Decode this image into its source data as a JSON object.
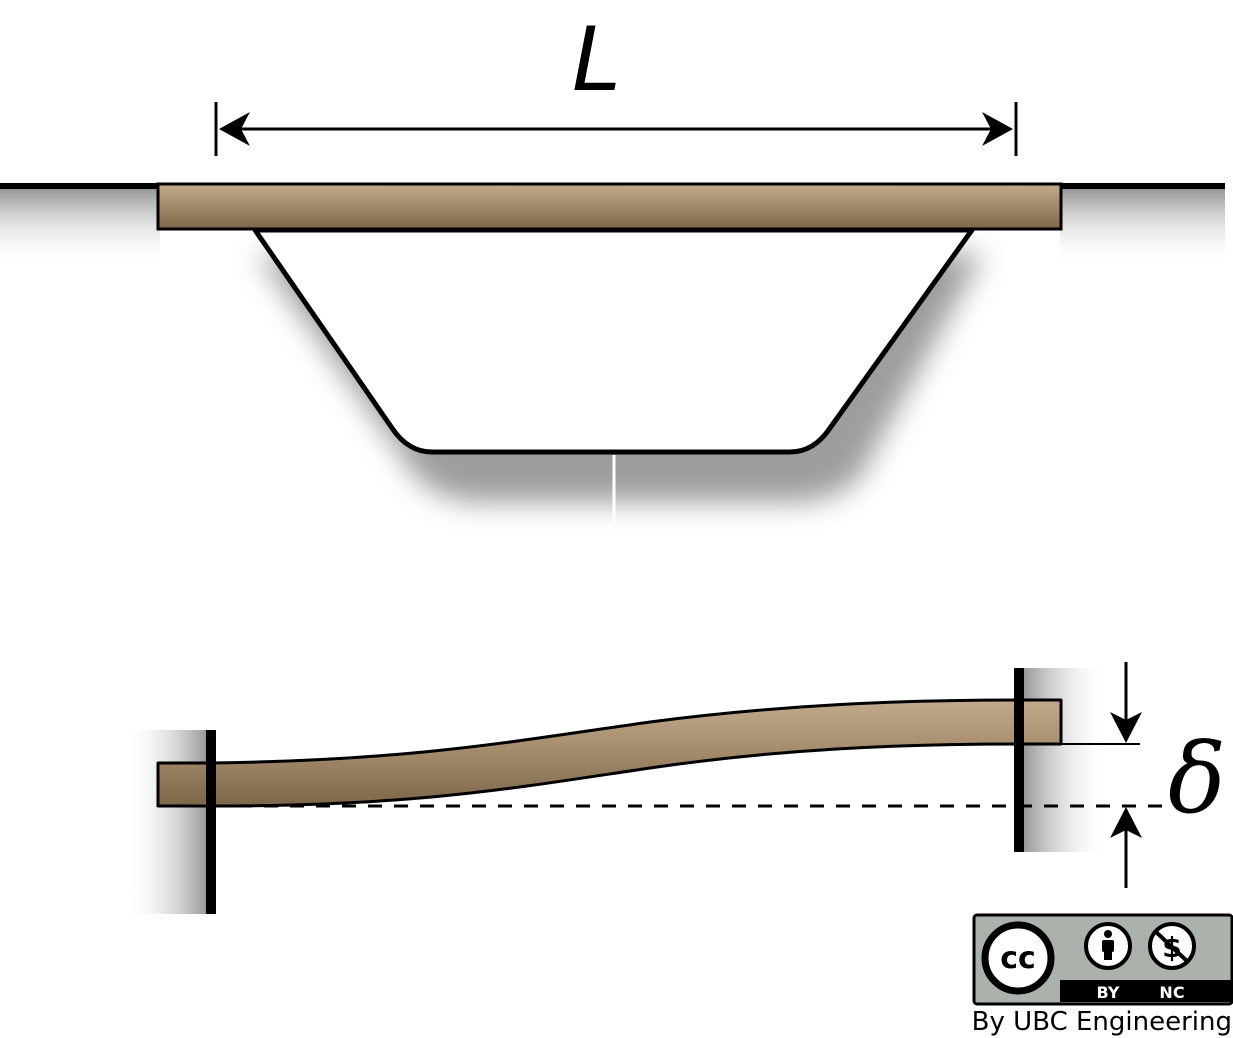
{
  "labels": {
    "span": "L",
    "deflection": "δ"
  },
  "license": {
    "cc": "cc",
    "by": "BY",
    "nc": "NC",
    "credit": "By UBC Engineering"
  },
  "colors": {
    "beam": "#a68d6e",
    "beam_shadow": "#7a6448",
    "ground_shadow": "#9a9a9a",
    "line": "#000000",
    "badge_bg": "#aab2ab"
  }
}
